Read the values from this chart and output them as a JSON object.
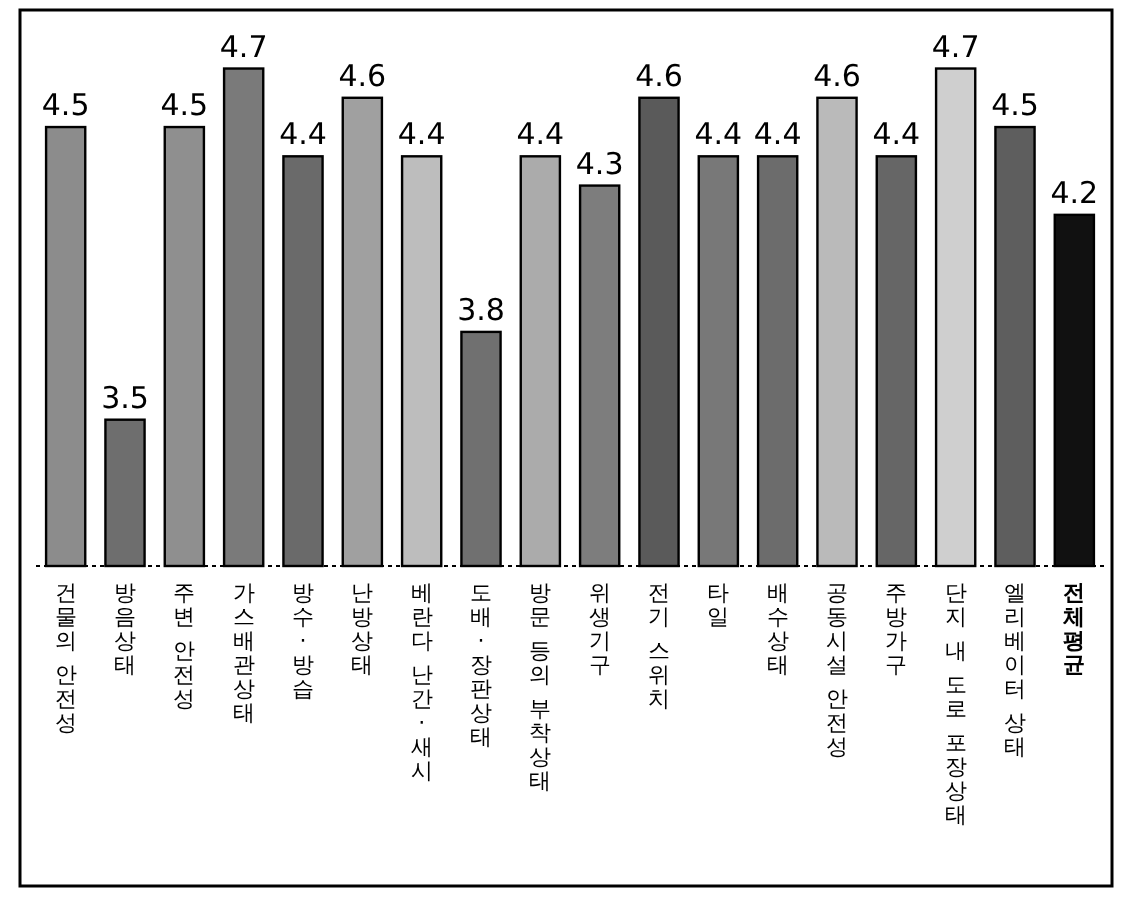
{
  "chart_data": {
    "type": "bar",
    "data_labels": true,
    "ylim": [
      3,
      4.9
    ],
    "categories": [
      "건물의 안전성",
      "방음상태",
      "주변 안전성",
      "가스배관상태",
      "방수·방습",
      "난방상태",
      "베란다 난간·새시",
      "도배·장판상태",
      "방문 등의 부착상태",
      "위생기구",
      "전기 스위치",
      "타일",
      "배수상태",
      "공동시설 안전성",
      "주방가구",
      "단지 내 도로 포장상태",
      "엘리베이터 상태",
      "전체평균"
    ],
    "values": [
      4.5,
      3.5,
      4.5,
      4.7,
      4.4,
      4.6,
      4.4,
      3.8,
      4.4,
      4.3,
      4.6,
      4.4,
      4.4,
      4.6,
      4.4,
      4.7,
      4.5,
      4.2
    ],
    "colors": [
      "#8c8c8c",
      "#6e6e6e",
      "#8f8f8f",
      "#7a7a7a",
      "#6a6a6a",
      "#a0a0a0",
      "#bdbdbd",
      "#707070",
      "#ababab",
      "#7d7d7d",
      "#5a5a5a",
      "#787878",
      "#6c6c6c",
      "#bababa",
      "#666666",
      "#cfcfcf",
      "#5e5e5e",
      "#111111"
    ],
    "tick_labels": "x"
  }
}
